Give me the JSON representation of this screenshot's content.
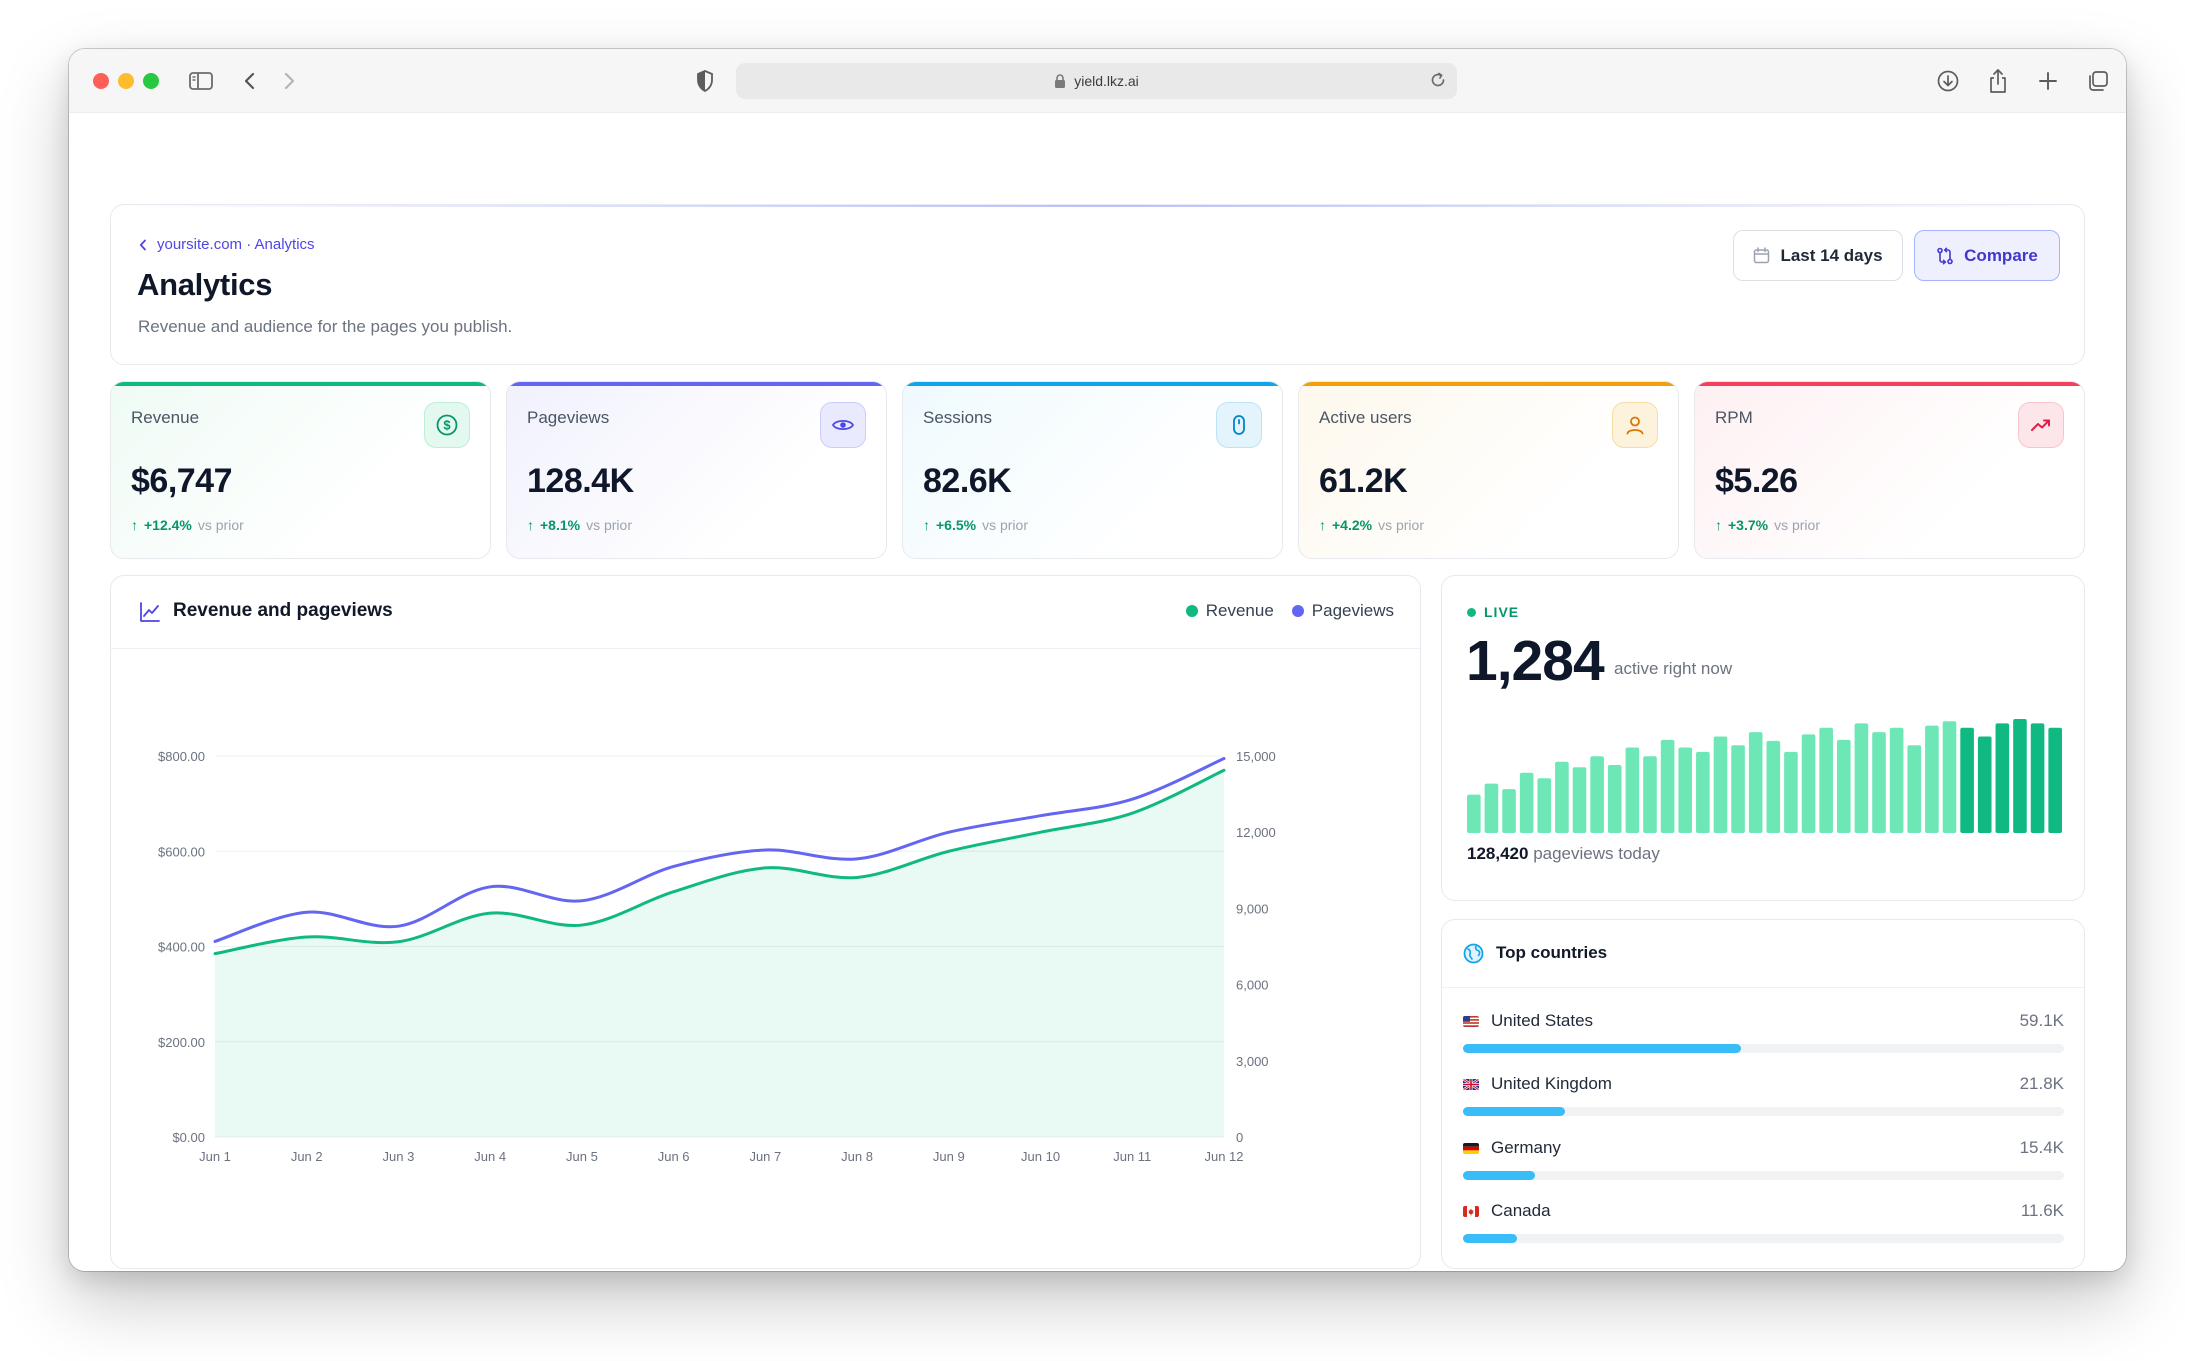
{
  "browser": {
    "url": "yield.lkz.ai"
  },
  "header": {
    "breadcrumb": "yoursite.com · Analytics",
    "title": "Analytics",
    "subtitle": "Revenue and audience for the pages you publish.",
    "range_label": "Last 14 days",
    "compare_label": "Compare"
  },
  "kpis": [
    {
      "label": "Revenue",
      "value": "$6,747",
      "delta": "+12.4%",
      "vs": "vs prior",
      "color": "#10b981",
      "icon": "dollar-icon"
    },
    {
      "label": "Pageviews",
      "value": "128.4K",
      "delta": "+8.1%",
      "vs": "vs prior",
      "color": "#6366f1",
      "icon": "eye-icon"
    },
    {
      "label": "Sessions",
      "value": "82.6K",
      "delta": "+6.5%",
      "vs": "vs prior",
      "color": "#0ea5e9",
      "icon": "mouse-icon"
    },
    {
      "label": "Active users",
      "value": "61.2K",
      "delta": "+4.2%",
      "vs": "vs prior",
      "color": "#f59e0b",
      "icon": "user-icon"
    },
    {
      "label": "RPM",
      "value": "$5.26",
      "delta": "+3.7%",
      "vs": "vs prior",
      "color": "#f43f5e",
      "icon": "trend-up-icon"
    }
  ],
  "chart_card": {
    "title": "Revenue and pageviews",
    "legend": [
      {
        "name": "Revenue",
        "color": "#10b981"
      },
      {
        "name": "Pageviews",
        "color": "#6366f1"
      }
    ]
  },
  "chart_data": {
    "type": "area",
    "title": "Revenue and pageviews",
    "categories": [
      "Jun 1",
      "Jun 2",
      "Jun 3",
      "Jun 4",
      "Jun 5",
      "Jun 6",
      "Jun 7",
      "Jun 8",
      "Jun 9",
      "Jun 10",
      "Jun 11",
      "Jun 12"
    ],
    "series": [
      {
        "name": "Revenue",
        "axis": "left",
        "color": "#10b981",
        "values": [
          385,
          420,
          410,
          470,
          445,
          515,
          565,
          545,
          600,
          640,
          680,
          770
        ]
      },
      {
        "name": "Pageviews",
        "axis": "right",
        "color": "#6366f1",
        "values": [
          7700,
          8850,
          8300,
          9850,
          9300,
          10650,
          11300,
          10950,
          12000,
          12650,
          13300,
          14900
        ]
      }
    ],
    "y_left": {
      "ticks": [
        "$0.00",
        "$200.00",
        "$400.00",
        "$600.00",
        "$800.00"
      ],
      "min": 0,
      "max": 800
    },
    "y_right": {
      "ticks": [
        "0",
        "3,000",
        "6,000",
        "9,000",
        "12,000",
        "15,000"
      ],
      "min": 0,
      "max": 15000
    },
    "grid": true,
    "legend_position": "top-right"
  },
  "live": {
    "tag": "LIVE",
    "value": "1,284",
    "sub": "active right now",
    "pageviews_today": "128,420",
    "pageviews_label": "pageviews today",
    "bars": [
      35,
      45,
      40,
      55,
      50,
      65,
      60,
      70,
      62,
      78,
      70,
      85,
      78,
      74,
      88,
      80,
      92,
      84,
      74,
      90,
      96,
      85,
      100,
      92,
      96,
      80,
      98,
      102,
      96,
      88,
      100,
      104,
      100,
      96
    ],
    "highlight_from": 28
  },
  "countries": {
    "title": "Top countries",
    "items": [
      {
        "name": "United States",
        "value": "59.1K",
        "share": 0.462
      },
      {
        "name": "United Kingdom",
        "value": "21.8K",
        "share": 0.17
      },
      {
        "name": "Germany",
        "value": "15.4K",
        "share": 0.12
      },
      {
        "name": "Canada",
        "value": "11.6K",
        "share": 0.09
      }
    ]
  }
}
